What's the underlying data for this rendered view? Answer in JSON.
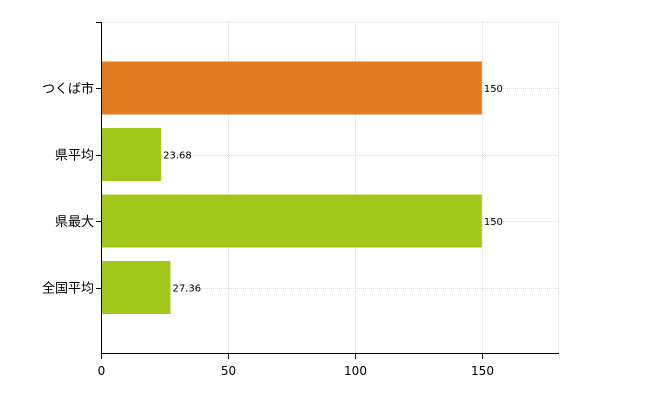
{
  "chart_data": {
    "type": "bar",
    "orientation": "horizontal",
    "categories": [
      "つくば市",
      "県平均",
      "県最大",
      "全国平均"
    ],
    "values": [
      150,
      23.68,
      150,
      27.36
    ],
    "data_labels": [
      "150",
      "23.68",
      "150",
      "27.36"
    ],
    "bar_colors": [
      "#e07b1f",
      "#a3c81c",
      "#a3c81c",
      "#a3c81c"
    ],
    "xlim": [
      0,
      180
    ],
    "xticks": [
      0,
      50,
      100,
      150
    ],
    "grid": true,
    "legend": "none",
    "title": "",
    "xlabel": "",
    "ylabel": ""
  }
}
